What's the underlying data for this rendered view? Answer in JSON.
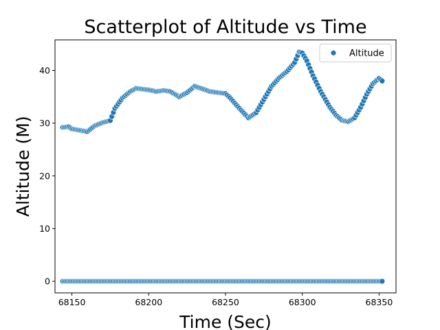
{
  "chart_data": {
    "type": "scatter",
    "title": "Scatterplot of Altitude vs Time",
    "xlabel": "Time (Sec)",
    "ylabel": "Altitude (M)",
    "xlim": [
      68139,
      68361
    ],
    "ylim": [
      -2.2,
      45.8
    ],
    "xticks": [
      68150,
      68200,
      68250,
      68300,
      68350
    ],
    "yticks": [
      0,
      10,
      20,
      30,
      40
    ],
    "grid": false,
    "legend": {
      "position": "top-right",
      "entries": [
        "Altitude"
      ]
    },
    "colors": {
      "marker": "#1f77b4",
      "marker_edge": "#ffffff"
    },
    "series": [
      {
        "name": "Altitude",
        "keypoints_x": [
          68144,
          68148,
          68150,
          68156,
          68160,
          68165,
          68170,
          68175,
          68178,
          68183,
          68188,
          68192,
          68200,
          68205,
          68210,
          68214,
          68220,
          68225,
          68230,
          68235,
          68240,
          68245,
          68250,
          68253,
          68256,
          68260,
          68265,
          68270,
          68275,
          68280,
          68285,
          68290,
          68295,
          68298,
          68300,
          68303,
          68307,
          68312,
          68318,
          68322,
          68326,
          68330,
          68334,
          68338,
          68342,
          68346,
          68350,
          68352
        ],
        "keypoints_y": [
          29.2,
          29.3,
          28.9,
          28.6,
          28.4,
          29.5,
          30.1,
          30.5,
          32.8,
          34.8,
          36.0,
          36.6,
          36.3,
          36.0,
          36.2,
          36.0,
          35.0,
          35.8,
          37.0,
          36.5,
          36.0,
          35.8,
          35.6,
          34.8,
          33.8,
          32.5,
          31.0,
          32.0,
          34.5,
          37.0,
          38.6,
          39.8,
          41.5,
          43.5,
          43.3,
          41.8,
          39.0,
          36.0,
          33.0,
          31.5,
          30.5,
          30.3,
          31.0,
          33.0,
          35.5,
          37.5,
          38.5,
          38.0
        ],
        "step": 1
      },
      {
        "name": "Altitude",
        "x_start": 68144,
        "x_end": 68352,
        "step": 1,
        "y": 0
      }
    ]
  }
}
